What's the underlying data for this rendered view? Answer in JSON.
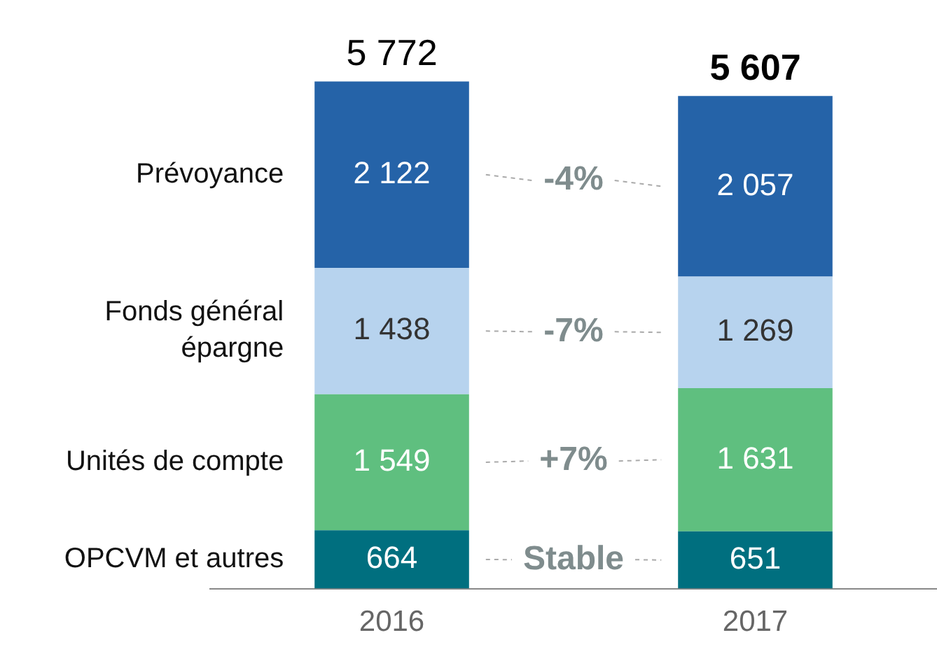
{
  "chart_data": {
    "type": "bar",
    "stacked": true,
    "categories": [
      "2016",
      "2017"
    ],
    "series": [
      {
        "name": "OPCVM et autres",
        "color": "#006f7f",
        "values": [
          664,
          651
        ],
        "value_labels": [
          "664",
          "651"
        ]
      },
      {
        "name": "Unités de compte",
        "color": "#5fbf7f",
        "values": [
          1549,
          1631
        ],
        "value_labels": [
          "1 549",
          "1 631"
        ]
      },
      {
        "name": "Fonds général épargne",
        "color": "#b7d3ee",
        "values": [
          1438,
          1269
        ],
        "value_labels": [
          "1 438",
          "1 269"
        ]
      },
      {
        "name": "Prévoyance",
        "color": "#2563a8",
        "values": [
          2122,
          2057
        ],
        "value_labels": [
          "2 122",
          "2 057"
        ]
      }
    ],
    "totals": [
      "5 772",
      "5 607"
    ],
    "annotations": [
      "Stable",
      "+7%",
      "-7%",
      "-4%"
    ],
    "tick_labels": "x",
    "grid": false,
    "legend": false
  }
}
